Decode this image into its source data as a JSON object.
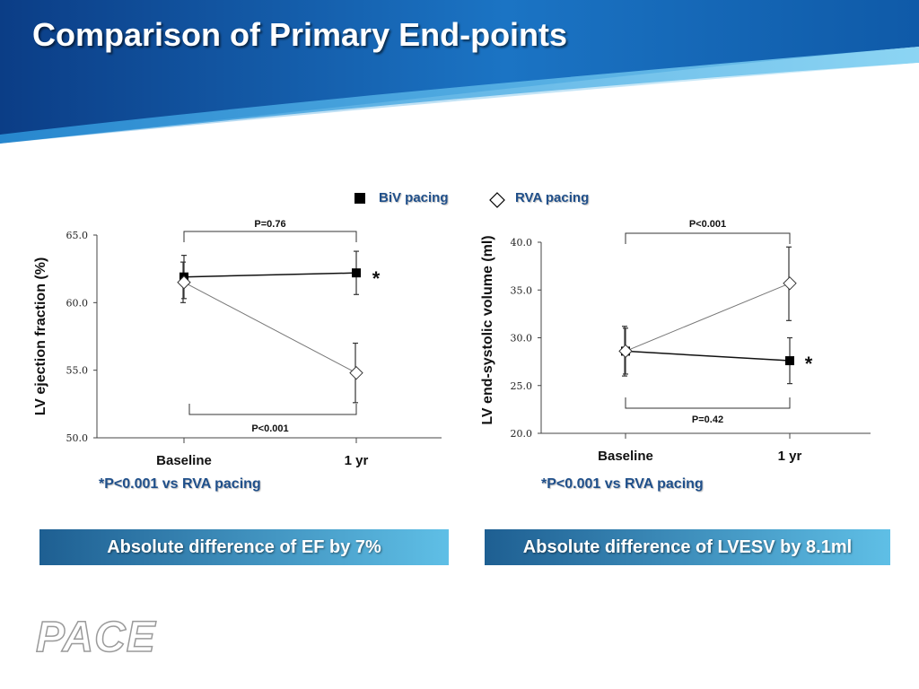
{
  "slide": {
    "title": "Comparison of Primary End-points",
    "logo_text": "PACE",
    "colors": {
      "header_dark": "#0b3d86",
      "header_light": "#3aa9e0",
      "text_blue": "#1f4f8a",
      "banner_left": "#1e5f92",
      "banner_right": "#5fbfe6"
    }
  },
  "legend": [
    {
      "label": "BiV pacing",
      "marker": "filled-square"
    },
    {
      "label": "RVA pacing",
      "marker": "open-diamond"
    }
  ],
  "notes": {
    "left": "*P<0.001 vs RVA pacing",
    "right": "*P<0.001 vs RVA pacing"
  },
  "banners": {
    "left": "Absolute difference of EF by 7%",
    "right": "Absolute difference of LVESV by 8.1ml"
  },
  "chart_data": [
    {
      "type": "line",
      "ylabel": "LV ejection fraction (%)",
      "categories": [
        "Baseline",
        "1 yr"
      ],
      "ylim": [
        50.0,
        65.0
      ],
      "yticks": [
        "50.0",
        "55.0",
        "60.0",
        "65.0"
      ],
      "series": [
        {
          "name": "BiV pacing",
          "marker": "filled-square",
          "values": [
            61.9,
            62.2
          ],
          "err_low": [
            60.3,
            60.6
          ],
          "err_high": [
            63.5,
            63.8
          ]
        },
        {
          "name": "RVA pacing",
          "marker": "open-diamond",
          "values": [
            61.5,
            54.8
          ],
          "err_low": [
            60.0,
            52.6
          ],
          "err_high": [
            63.0,
            57.0
          ]
        }
      ],
      "annotations": {
        "top_bracket": "P=0.76",
        "bottom_bracket": "P<0.001",
        "star": "*"
      }
    },
    {
      "type": "line",
      "ylabel": "LV end-systolic volume (ml)",
      "categories": [
        "Baseline",
        "1 yr"
      ],
      "ylim": [
        20.0,
        40.0
      ],
      "yticks": [
        "20.0",
        "25.0",
        "30.0",
        "35.0",
        "40.0"
      ],
      "series": [
        {
          "name": "BiV pacing",
          "marker": "filled-square",
          "values": [
            28.6,
            27.6
          ],
          "err_low": [
            26.2,
            25.2
          ],
          "err_high": [
            31.0,
            30.0
          ]
        },
        {
          "name": "RVA pacing",
          "marker": "open-diamond",
          "values": [
            28.6,
            35.7
          ],
          "err_low": [
            26.0,
            31.8
          ],
          "err_high": [
            31.2,
            39.5
          ]
        }
      ],
      "annotations": {
        "top_bracket": "P<0.001",
        "bottom_bracket": "P=0.42",
        "star": "*"
      }
    }
  ]
}
